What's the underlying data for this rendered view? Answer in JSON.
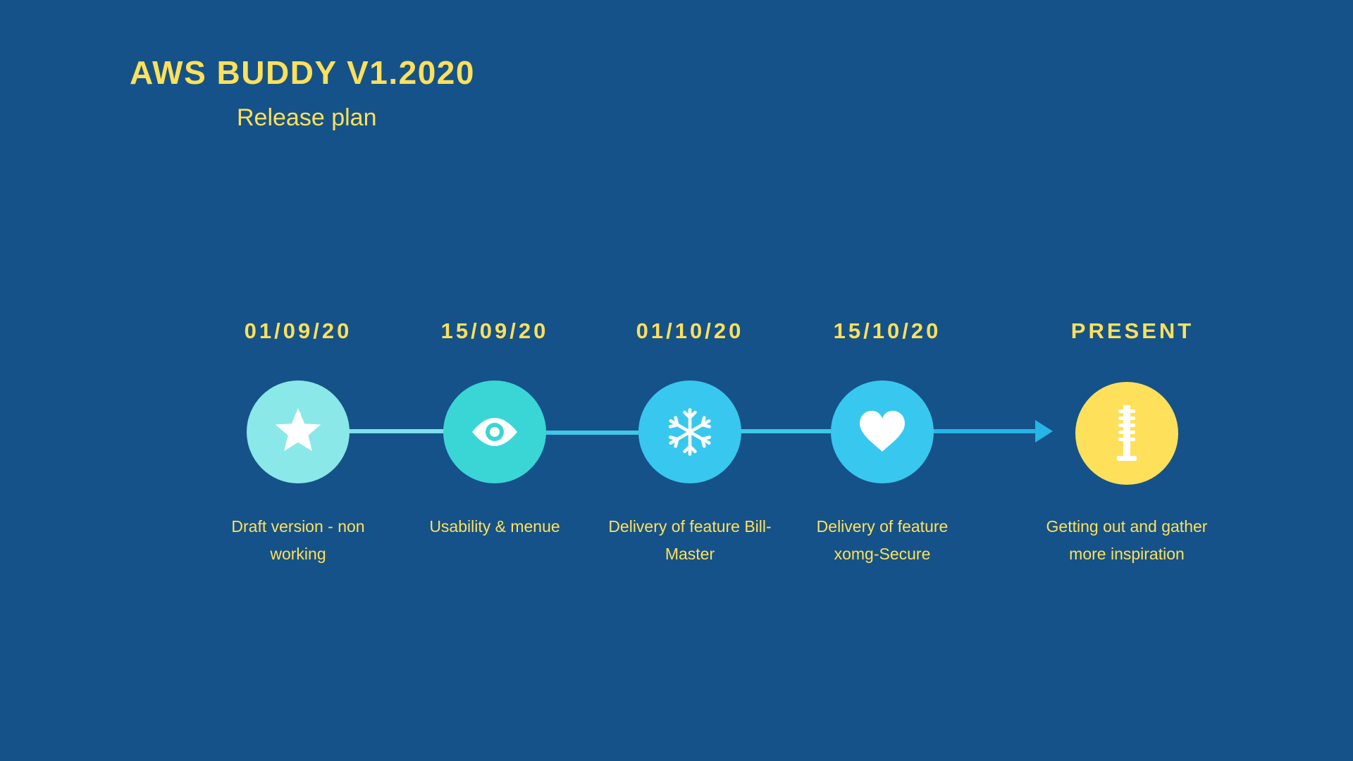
{
  "title": "AWS BUDDY V1.2020",
  "subtitle": "Release plan",
  "colors": {
    "background": "#155289",
    "text": "#ffe05a",
    "line": "#3fc8e8",
    "arrow": "#27b4e6"
  },
  "milestones": [
    {
      "date": "01/09/20",
      "icon": "star-icon",
      "color": "#8ae8e8",
      "description": "Draft version - non working"
    },
    {
      "date": "15/09/20",
      "icon": "eye-icon",
      "color": "#3ad6d6",
      "description": "Usability & menue"
    },
    {
      "date": "01/10/20",
      "icon": "snowflake-icon",
      "color": "#38c8ef",
      "description": "Delivery of feature Bill-Master"
    },
    {
      "date": "15/10/20",
      "icon": "heart-icon",
      "color": "#38c8ef",
      "description": "Delivery of feature xomg-Secure"
    },
    {
      "date": "PRESENT",
      "icon": "microphone-icon",
      "color": "#ffe05a",
      "description": "Getting out and gather more inspiration"
    }
  ]
}
